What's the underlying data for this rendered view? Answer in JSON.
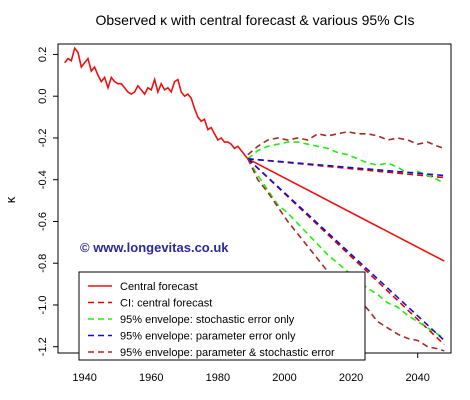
{
  "colors": {
    "observed": "#ee1111",
    "central": "#ee1111",
    "ci_central": "#dd0000",
    "stochastic": "#22ee11",
    "parameter": "#1111cc",
    "param_stoch": "#a52a2a",
    "watermark": "#2a2a99"
  },
  "chart_data": {
    "type": "line",
    "title": "Observed κ with central forecast & various 95% CIs",
    "xlabel": "",
    "ylabel": "κ",
    "xlim": [
      1932,
      2050
    ],
    "ylim": [
      -1.23,
      0.25
    ],
    "xticks": [
      1940,
      1960,
      1980,
      2000,
      2020,
      2040
    ],
    "xtick_labels": [
      "1940",
      "1960",
      "1980",
      "2000",
      "2020",
      "2040"
    ],
    "yticks": [
      0.2,
      0.0,
      -0.2,
      -0.4,
      -0.6,
      -0.8,
      -1.0,
      -1.2
    ],
    "ytick_labels": [
      "0.2",
      "0.0",
      "-0.2",
      "-0.4",
      "-0.6",
      "-0.8",
      "-1.0",
      "-1.2"
    ],
    "watermark": "© www.longevitas.co.uk",
    "legend": {
      "position": "bottom-left",
      "entries": [
        {
          "label": "Central forecast",
          "style": "solid",
          "color_key": "central"
        },
        {
          "label": "CI: central forecast",
          "style": "dashed",
          "color_key": "ci_central"
        },
        {
          "label": "95% envelope: stochastic error only",
          "style": "dashed",
          "color_key": "stochastic"
        },
        {
          "label": "95% envelope: parameter error only",
          "style": "dashed",
          "color_key": "parameter"
        },
        {
          "label": "95% envelope: parameter & stochastic error",
          "style": "dashed",
          "color_key": "param_stoch"
        }
      ]
    },
    "series": [
      {
        "name": "Observed",
        "color_key": "observed",
        "style": "solid",
        "x": [
          1934,
          1935,
          1936,
          1937,
          1938,
          1939,
          1940,
          1941,
          1942,
          1943,
          1944,
          1945,
          1946,
          1947,
          1948,
          1949,
          1950,
          1951,
          1952,
          1953,
          1954,
          1955,
          1956,
          1957,
          1958,
          1959,
          1960,
          1961,
          1962,
          1963,
          1964,
          1965,
          1966,
          1967,
          1968,
          1969,
          1970,
          1971,
          1972,
          1973,
          1974,
          1975,
          1976,
          1977,
          1978,
          1979,
          1980,
          1981,
          1982,
          1983,
          1984,
          1985,
          1986,
          1987,
          1988,
          1989
        ],
        "y": [
          0.16,
          0.18,
          0.17,
          0.23,
          0.21,
          0.14,
          0.16,
          0.18,
          0.12,
          0.14,
          0.1,
          0.07,
          0.09,
          0.04,
          0.09,
          0.07,
          0.06,
          0.06,
          0.04,
          0.02,
          0.01,
          0.02,
          0.05,
          0.03,
          0.01,
          0.04,
          0.03,
          0.08,
          0.02,
          0.06,
          0.03,
          0.04,
          0.02,
          0.07,
          0.08,
          0.02,
          0.0,
          0.01,
          -0.01,
          -0.06,
          -0.1,
          -0.12,
          -0.11,
          -0.16,
          -0.15,
          -0.18,
          -0.21,
          -0.2,
          -0.22,
          -0.22,
          -0.23,
          -0.25,
          -0.24,
          -0.26,
          -0.28,
          -0.3
        ]
      },
      {
        "name": "Central forecast",
        "color_key": "central",
        "style": "solid",
        "x": [
          1989,
          2048
        ],
        "y": [
          -0.3,
          -0.79
        ]
      },
      {
        "name": "CI: central forecast upper",
        "color_key": "ci_central",
        "style": "dashed",
        "x": [
          1989,
          2048
        ],
        "y": [
          -0.3,
          -0.39
        ]
      },
      {
        "name": "CI: central forecast lower",
        "color_key": "ci_central",
        "style": "dashed",
        "x": [
          1989,
          2048
        ],
        "y": [
          -0.3,
          -1.19
        ]
      },
      {
        "name": "Stochastic upper",
        "color_key": "stochastic",
        "style": "dashed",
        "x": [
          1989,
          1992,
          1995,
          1998,
          2001,
          2004,
          2007,
          2010,
          2013,
          2016,
          2019,
          2022,
          2025,
          2028,
          2031,
          2034,
          2037,
          2040,
          2043,
          2046,
          2048
        ],
        "y": [
          -0.3,
          -0.26,
          -0.24,
          -0.23,
          -0.22,
          -0.22,
          -0.23,
          -0.24,
          -0.25,
          -0.27,
          -0.28,
          -0.3,
          -0.32,
          -0.33,
          -0.32,
          -0.34,
          -0.37,
          -0.36,
          -0.38,
          -0.4,
          -0.42
        ]
      },
      {
        "name": "Stochastic lower",
        "color_key": "stochastic",
        "style": "dashed",
        "x": [
          1989,
          1992,
          1995,
          1998,
          2001,
          2004,
          2007,
          2010,
          2013,
          2016,
          2019,
          2022,
          2025,
          2028,
          2031,
          2034,
          2037,
          2040,
          2043,
          2046,
          2048
        ],
        "y": [
          -0.3,
          -0.38,
          -0.45,
          -0.52,
          -0.56,
          -0.61,
          -0.66,
          -0.71,
          -0.76,
          -0.8,
          -0.84,
          -0.88,
          -0.92,
          -0.95,
          -0.99,
          -1.01,
          -1.05,
          -1.08,
          -1.11,
          -1.14,
          -1.16
        ]
      },
      {
        "name": "Parameter upper",
        "color_key": "parameter",
        "style": "dashed",
        "x": [
          1989,
          2048
        ],
        "y": [
          -0.3,
          -0.38
        ]
      },
      {
        "name": "Parameter lower",
        "color_key": "parameter",
        "style": "dashed",
        "x": [
          1989,
          2048
        ],
        "y": [
          -0.3,
          -1.17
        ]
      },
      {
        "name": "Param & stochastic upper",
        "color_key": "param_stoch",
        "style": "dashed",
        "x": [
          1989,
          1992,
          1995,
          1998,
          2001,
          2004,
          2007,
          2010,
          2013,
          2016,
          2019,
          2022,
          2025,
          2028,
          2031,
          2034,
          2037,
          2040,
          2043,
          2046,
          2048
        ],
        "y": [
          -0.28,
          -0.24,
          -0.21,
          -0.2,
          -0.21,
          -0.2,
          -0.21,
          -0.18,
          -0.19,
          -0.18,
          -0.17,
          -0.18,
          -0.18,
          -0.19,
          -0.21,
          -0.2,
          -0.21,
          -0.23,
          -0.22,
          -0.24,
          -0.25
        ]
      },
      {
        "name": "Param & stochastic lower",
        "color_key": "param_stoch",
        "style": "dashed",
        "x": [
          1989,
          1992,
          1995,
          1998,
          2001,
          2004,
          2007,
          2010,
          2013,
          2016,
          2019,
          2022,
          2025,
          2028,
          2031,
          2034,
          2037,
          2040,
          2043,
          2046,
          2048
        ],
        "y": [
          -0.3,
          -0.4,
          -0.46,
          -0.53,
          -0.6,
          -0.66,
          -0.72,
          -0.78,
          -0.84,
          -0.88,
          -0.93,
          -0.97,
          -1.02,
          -1.08,
          -1.11,
          -1.14,
          -1.16,
          -1.17,
          -1.2,
          -1.21,
          -1.22
        ]
      }
    ]
  }
}
